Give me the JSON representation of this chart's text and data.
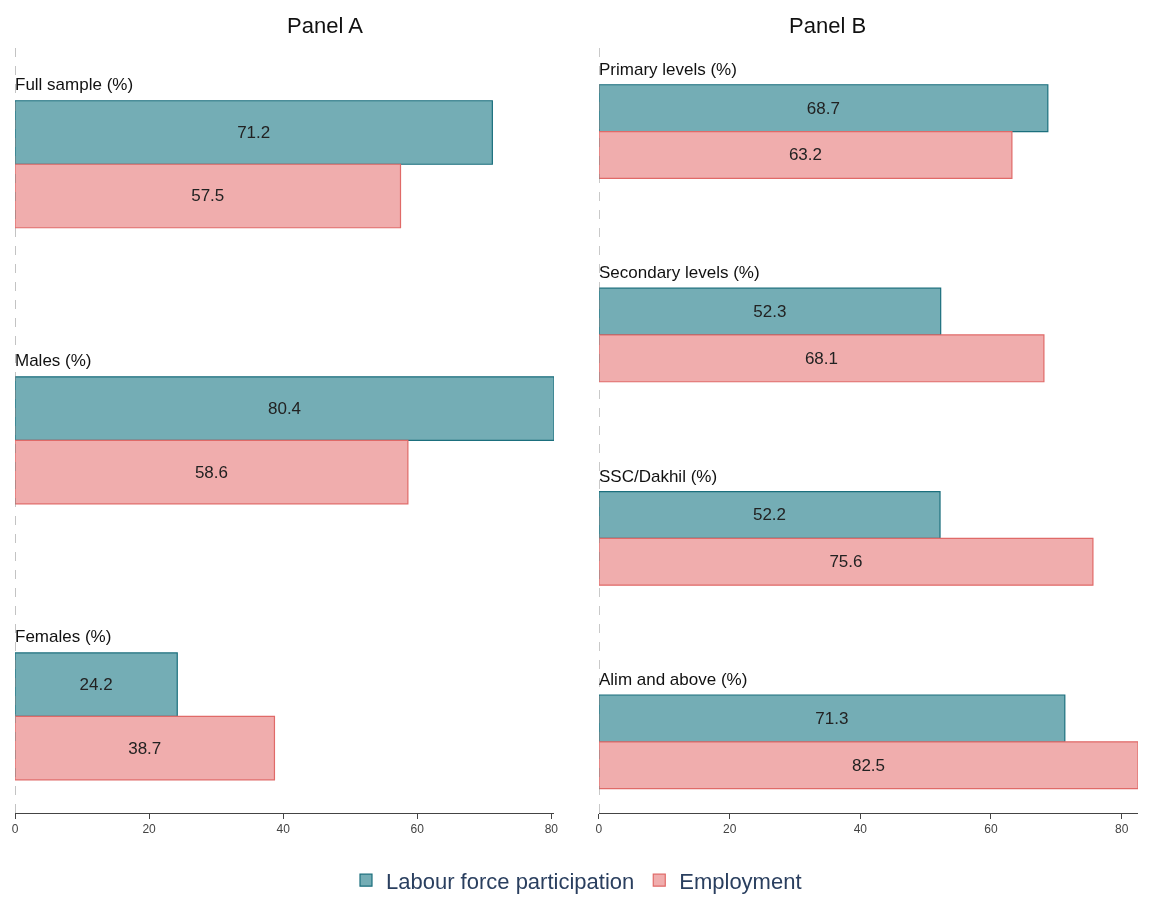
{
  "chart_data": [
    {
      "type": "bar",
      "orientation": "horizontal",
      "title": "Panel A",
      "categories": [
        "Full sample (%)",
        "Males (%)",
        "Females (%)"
      ],
      "series": [
        {
          "name": "Employment",
          "color": "#f0adad",
          "values": [
            57.5,
            58.6,
            38.7
          ]
        },
        {
          "name": "Labour force participation",
          "color": "#74adb5",
          "values": [
            71.2,
            80.4,
            24.2
          ]
        }
      ],
      "xlim": [
        0,
        80.4
      ],
      "xticks": [
        0,
        20,
        40,
        60,
        80
      ],
      "data_labels": true,
      "legend": "bottom",
      "tick_labels": "x",
      "ref_lines": [
        {
          "axis": "x",
          "value": 0,
          "line_style": "dashed",
          "color": "#888888"
        }
      ]
    },
    {
      "type": "bar",
      "orientation": "horizontal",
      "title": "Panel B",
      "categories": [
        "Primary levels (%)",
        "Secondary levels (%)",
        "SSC/Dakhil (%)",
        "Alim and above (%)"
      ],
      "series": [
        {
          "name": "Employment",
          "color": "#f0adad",
          "values": [
            63.2,
            68.1,
            75.6,
            82.5
          ]
        },
        {
          "name": "Labour force participation",
          "color": "#74adb5",
          "values": [
            68.7,
            52.3,
            52.2,
            71.3
          ]
        }
      ],
      "xlim": [
        0,
        82.5
      ],
      "xticks": [
        0,
        20,
        40,
        60,
        80
      ],
      "data_labels": true,
      "legend": "bottom",
      "tick_labels": "x",
      "ref_lines": [
        {
          "axis": "x",
          "value": 0,
          "line_style": "dashed",
          "color": "#888888"
        }
      ]
    }
  ]
}
